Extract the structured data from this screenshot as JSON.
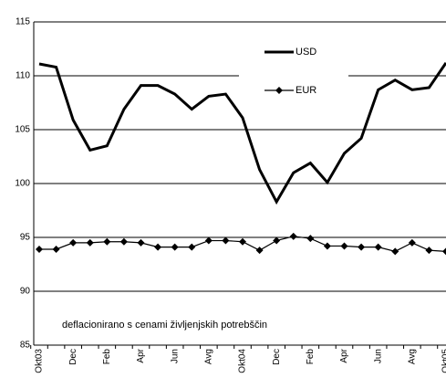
{
  "chart_data": {
    "type": "line",
    "categories": [
      "Okt03",
      null,
      "Dec",
      null,
      "Feb",
      null,
      "Apr",
      null,
      "Jun",
      null,
      "Avg",
      null,
      "Okt04",
      null,
      "Dec",
      null,
      "Feb",
      null,
      "Apr",
      null,
      "Jun",
      null,
      "Avg",
      null,
      "Okt05"
    ],
    "series": [
      {
        "name": "USD",
        "color": "#000000",
        "marker": "none",
        "values": [
          111.1,
          110.8,
          105.9,
          103.1,
          103.5,
          106.9,
          109.1,
          109.1,
          108.3,
          106.9,
          108.1,
          108.3,
          106.1,
          101.3,
          98.3,
          101.0,
          101.9,
          100.1,
          102.8,
          104.2,
          108.7,
          109.6,
          108.7,
          108.9,
          111.2
        ]
      },
      {
        "name": "EUR",
        "color": "#000000",
        "marker": "diamond",
        "values": [
          93.9,
          93.9,
          94.5,
          94.5,
          94.6,
          94.6,
          94.5,
          94.1,
          94.1,
          94.1,
          94.7,
          94.7,
          94.6,
          93.8,
          94.7,
          95.1,
          94.9,
          94.2,
          94.2,
          94.1,
          94.1,
          93.7,
          94.5,
          93.8,
          93.7
        ]
      }
    ],
    "ylim": [
      85,
      115
    ],
    "yticks": [
      85,
      90,
      95,
      100,
      105,
      110,
      115
    ],
    "grid": true,
    "annotation": "deflacionirano s cenami življenjskih potrebščin"
  }
}
